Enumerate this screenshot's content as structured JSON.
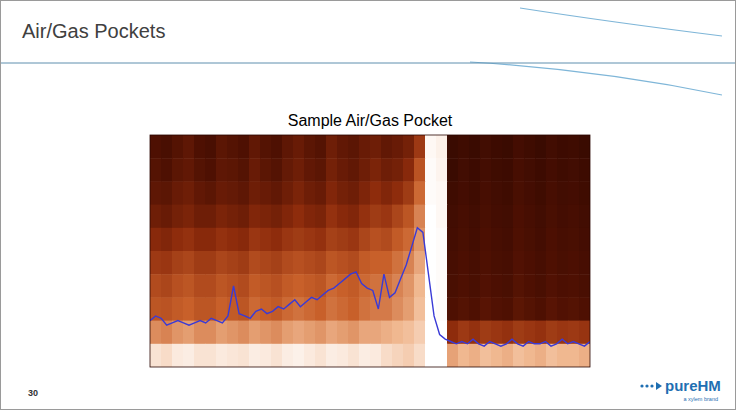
{
  "slide": {
    "title": "Air/Gas Pockets",
    "page_number": 30,
    "logo": "pureHM",
    "logo_tagline": "a xylem brand"
  },
  "chart_data": {
    "type": "heatmap",
    "title": "Sample Air/Gas Pocket",
    "tick_labels": false,
    "cell_range": [
      0,
      100
    ],
    "cells": [
      [
        20,
        18,
        22,
        25,
        20,
        18,
        24,
        22,
        20,
        26,
        22,
        20,
        25,
        28,
        24,
        22,
        30,
        26,
        24,
        28,
        30,
        26,
        28,
        32,
        45,
        98,
        96,
        12,
        14,
        12,
        15,
        13,
        12,
        16,
        14,
        12,
        15,
        13,
        14,
        12
      ],
      [
        22,
        20,
        24,
        26,
        22,
        20,
        25,
        24,
        22,
        28,
        24,
        22,
        27,
        30,
        26,
        24,
        32,
        28,
        26,
        30,
        34,
        30,
        32,
        38,
        55,
        99,
        97,
        12,
        15,
        13,
        16,
        14,
        13,
        17,
        15,
        13,
        16,
        14,
        15,
        13
      ],
      [
        25,
        24,
        28,
        30,
        26,
        24,
        28,
        27,
        25,
        30,
        28,
        26,
        30,
        34,
        30,
        28,
        36,
        32,
        30,
        35,
        40,
        36,
        40,
        46,
        62,
        99,
        98,
        14,
        16,
        14,
        17,
        15,
        14,
        18,
        16,
        14,
        17,
        15,
        16,
        14
      ],
      [
        30,
        28,
        32,
        34,
        30,
        30,
        34,
        32,
        30,
        36,
        34,
        32,
        36,
        40,
        36,
        34,
        42,
        38,
        36,
        42,
        46,
        44,
        50,
        56,
        68,
        100,
        98,
        15,
        17,
        15,
        18,
        16,
        15,
        19,
        17,
        15,
        18,
        16,
        17,
        15
      ],
      [
        38,
        36,
        40,
        42,
        38,
        38,
        42,
        40,
        38,
        44,
        42,
        40,
        44,
        46,
        44,
        42,
        48,
        46,
        44,
        50,
        54,
        52,
        58,
        62,
        72,
        100,
        99,
        16,
        18,
        16,
        19,
        17,
        16,
        20,
        18,
        16,
        19,
        17,
        18,
        16
      ],
      [
        45,
        44,
        48,
        50,
        46,
        46,
        50,
        48,
        46,
        52,
        50,
        48,
        52,
        54,
        52,
        50,
        56,
        54,
        52,
        58,
        60,
        60,
        64,
        68,
        76,
        100,
        99,
        17,
        19,
        17,
        20,
        18,
        17,
        21,
        19,
        17,
        20,
        18,
        19,
        17
      ],
      [
        52,
        50,
        54,
        56,
        52,
        52,
        56,
        54,
        52,
        58,
        56,
        54,
        58,
        60,
        58,
        56,
        62,
        60,
        58,
        62,
        64,
        64,
        68,
        72,
        80,
        100,
        99,
        18,
        20,
        18,
        21,
        19,
        18,
        22,
        20,
        18,
        21,
        19,
        20,
        18
      ],
      [
        56,
        55,
        58,
        60,
        56,
        56,
        60,
        58,
        56,
        62,
        60,
        58,
        62,
        64,
        62,
        60,
        64,
        62,
        60,
        64,
        66,
        66,
        70,
        74,
        82,
        100,
        99,
        20,
        22,
        20,
        23,
        21,
        20,
        24,
        22,
        20,
        23,
        21,
        22,
        20
      ],
      [
        70,
        68,
        72,
        74,
        70,
        70,
        74,
        72,
        70,
        74,
        72,
        70,
        74,
        76,
        74,
        72,
        76,
        74,
        72,
        76,
        76,
        78,
        80,
        82,
        86,
        100,
        100,
        40,
        45,
        42,
        46,
        44,
        42,
        46,
        44,
        42,
        46,
        44,
        45,
        43
      ],
      [
        92,
        90,
        94,
        95,
        92,
        92,
        94,
        93,
        92,
        95,
        94,
        92,
        95,
        96,
        94,
        92,
        95,
        94,
        92,
        95,
        94,
        90,
        88,
        86,
        90,
        100,
        100,
        75,
        80,
        78,
        82,
        80,
        78,
        82,
        80,
        78,
        82,
        80,
        80,
        78
      ]
    ],
    "xlim": [
      0,
      79
    ],
    "ylim": [
      0,
      100
    ],
    "series": [
      {
        "type": "line",
        "color": "#3a3ad6",
        "x": [
          0,
          1,
          2,
          3,
          4,
          5,
          6,
          7,
          8,
          9,
          10,
          11,
          12,
          13,
          14,
          15,
          16,
          17,
          18,
          19,
          20,
          21,
          22,
          23,
          24,
          25,
          26,
          27,
          28,
          29,
          30,
          31,
          32,
          33,
          34,
          35,
          36,
          37,
          38,
          39,
          40,
          41,
          42,
          43,
          44,
          45,
          46,
          47,
          48,
          49,
          50,
          51,
          52,
          53,
          54,
          55,
          56,
          57,
          58,
          59,
          60,
          61,
          62,
          63,
          64,
          65,
          66,
          67,
          68,
          69,
          70,
          71,
          72,
          73,
          74,
          75,
          76,
          77,
          78,
          79
        ],
        "values": [
          20,
          22,
          21,
          18,
          19,
          20,
          19,
          18,
          19,
          20,
          19,
          21,
          20,
          19,
          22,
          35,
          23,
          22,
          21,
          24,
          25,
          23,
          24,
          26,
          25,
          27,
          29,
          26,
          28,
          30,
          29,
          31,
          33,
          34,
          36,
          38,
          40,
          41,
          36,
          34,
          33,
          25,
          40,
          30,
          32,
          38,
          44,
          52,
          60,
          58,
          40,
          22,
          14,
          12,
          11,
          10,
          11,
          10,
          12,
          10,
          9,
          11,
          10,
          9,
          10,
          12,
          10,
          9,
          11,
          10,
          10,
          11,
          9,
          10,
          12,
          10,
          11,
          10,
          9,
          11
        ]
      }
    ]
  }
}
